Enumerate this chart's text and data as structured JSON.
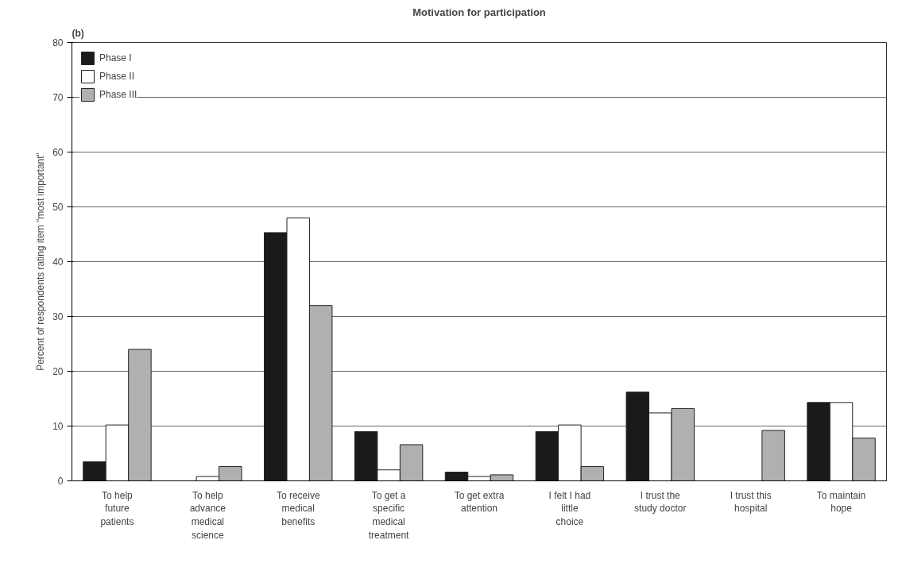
{
  "chart_data": {
    "type": "bar",
    "title": "Motivation for participation",
    "ylabel": "Percent of respondents rating item \"most important\"",
    "annotations": [
      "(b)"
    ],
    "categories": [
      "To help future patients",
      "To help advance medical science",
      "To receive medical benefits",
      "To get a specific medical treatment",
      "To get extra attention",
      "I felt I had little choice",
      "I trust the study doctor",
      "I trust this hospital",
      "To maintain hope"
    ],
    "series": [
      {
        "name": "Phase I",
        "color": "#1a1a1a",
        "values": [
          3.5,
          0,
          45.3,
          9,
          1.6,
          9,
          16.2,
          0,
          14.3
        ]
      },
      {
        "name": "Phase II",
        "color": "#ffffff",
        "values": [
          10.2,
          0.8,
          48,
          2,
          0.8,
          10.2,
          12.4,
          0,
          14.3
        ]
      },
      {
        "name": "Phase III",
        "color": "#b0b0b0",
        "values": [
          24,
          2.6,
          32,
          6.6,
          1.1,
          2.6,
          13.2,
          9.2,
          7.8
        ]
      }
    ],
    "ylim": [
      0,
      80
    ],
    "yticks": [
      0,
      10,
      20,
      30,
      40,
      50,
      60,
      70,
      80
    ],
    "grid": "y",
    "legend": "top left"
  }
}
